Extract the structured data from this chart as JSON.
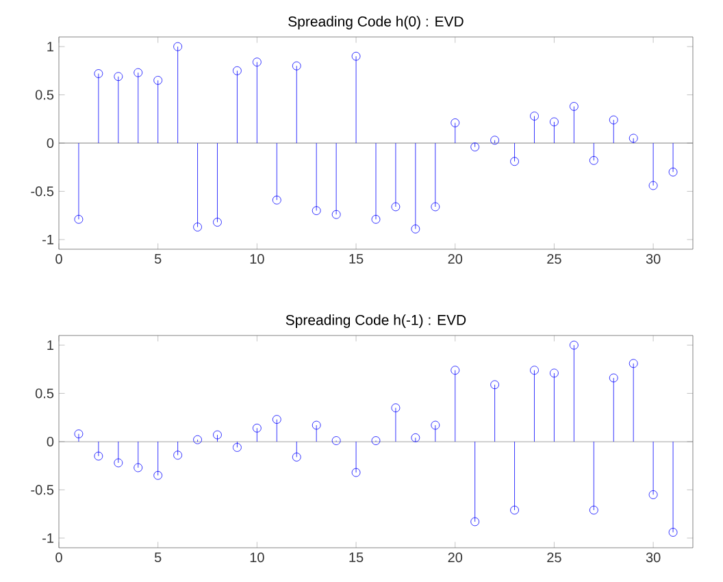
{
  "chart_data": [
    {
      "type": "lollipop",
      "title": "Spreading Code h(0) : EVD",
      "x": [
        1,
        2,
        3,
        4,
        5,
        6,
        7,
        8,
        9,
        10,
        11,
        12,
        13,
        14,
        15,
        16,
        17,
        18,
        19,
        20,
        21,
        22,
        23,
        24,
        25,
        26,
        27,
        28,
        29,
        30,
        31
      ],
      "series": [
        {
          "color": "#0000ff",
          "values": [
            -0.79,
            0.72,
            0.69,
            0.73,
            0.65,
            1.0,
            -0.87,
            -0.82,
            0.75,
            0.84,
            -0.59,
            0.8,
            -0.7,
            -0.74,
            0.9,
            -0.79,
            -0.66,
            -0.89,
            -0.66,
            0.21,
            -0.04,
            0.03,
            -0.19,
            0.28,
            0.22,
            0.38,
            -0.18,
            0.24,
            0.05,
            -0.44,
            -0.3
          ]
        }
      ],
      "xlim": [
        0,
        32
      ],
      "xticks": [
        0,
        5,
        10,
        15,
        20,
        25,
        30
      ],
      "ylim": [
        -1.1,
        1.1
      ],
      "yticks": [
        -1,
        -0.5,
        0,
        0.5,
        1
      ],
      "marker": "circle",
      "grid": false,
      "ref_lines": [
        {
          "axis": "y",
          "value": 0,
          "color": "#606060"
        }
      ]
    },
    {
      "type": "lollipop",
      "title": "Spreading Code h(-1) : EVD",
      "x": [
        1,
        2,
        3,
        4,
        5,
        6,
        7,
        8,
        9,
        10,
        11,
        12,
        13,
        14,
        15,
        16,
        17,
        18,
        19,
        20,
        21,
        22,
        23,
        24,
        25,
        26,
        27,
        28,
        29,
        30,
        31
      ],
      "series": [
        {
          "color": "#0000ff",
          "values": [
            0.08,
            -0.15,
            -0.22,
            -0.27,
            -0.35,
            -0.14,
            0.02,
            0.07,
            -0.06,
            0.14,
            0.23,
            -0.16,
            0.17,
            0.01,
            -0.32,
            0.01,
            0.35,
            0.04,
            0.17,
            0.74,
            -0.83,
            0.59,
            -0.71,
            0.74,
            0.71,
            1.0,
            -0.71,
            0.66,
            0.81,
            -0.55,
            -0.94
          ]
        }
      ],
      "xlim": [
        0,
        32
      ],
      "xticks": [
        0,
        5,
        10,
        15,
        20,
        25,
        30
      ],
      "ylim": [
        -1.1,
        1.1
      ],
      "yticks": [
        -1,
        -0.5,
        0,
        0.5,
        1
      ],
      "marker": "circle",
      "grid": false,
      "ref_lines": [
        {
          "axis": "y",
          "value": 0,
          "color": "#606060"
        }
      ]
    }
  ]
}
